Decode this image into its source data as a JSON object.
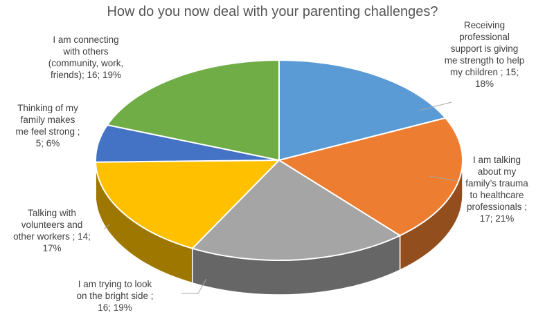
{
  "chart_data": {
    "type": "pie",
    "title": "How do you now deal with your parenting challenges?",
    "slices": [
      {
        "label": "Receiving professional support  is giving me strength to help my children",
        "value": 15,
        "percent": "18%",
        "color": "#5b9bd5"
      },
      {
        "label": "I am talking about my family’s trauma to healthcare professionals",
        "value": 17,
        "percent": "21%",
        "color": "#ed7d31"
      },
      {
        "label": "I am trying to look on the bright side",
        "value": 16,
        "percent": "19%",
        "color": "#a5a5a5"
      },
      {
        "label": "Talking with volunteers and other workers",
        "value": 14,
        "percent": "17%",
        "color": "#ffc000"
      },
      {
        "label": "Thinking of my family makes me feel strong",
        "value": 5,
        "percent": "6%",
        "color": "#4472c4"
      },
      {
        "label": "I am connecting with others (community, work, friends)",
        "value": 16,
        "percent": "19%",
        "color": "#70ad47"
      }
    ],
    "data_labels": [
      "Receiving\nprofessional\nsupport  is giving\nme strength to help\nmy children ; 15;\n18%",
      "I am talking\nabout my\nfamily’s trauma\nto healthcare\nprofessionals ;\n17; 21%",
      "I am trying to look\non the bright side ;\n16; 19%",
      "Talking with\nvolunteers and\nother workers ; 14;\n17%",
      "Thinking of my\nfamily makes\nme feel strong ;\n5; 6%",
      "I am connecting\nwith others\n(community, work,\nfriends); 16; 19%"
    ],
    "legend": "none",
    "style": "3d-pie"
  }
}
